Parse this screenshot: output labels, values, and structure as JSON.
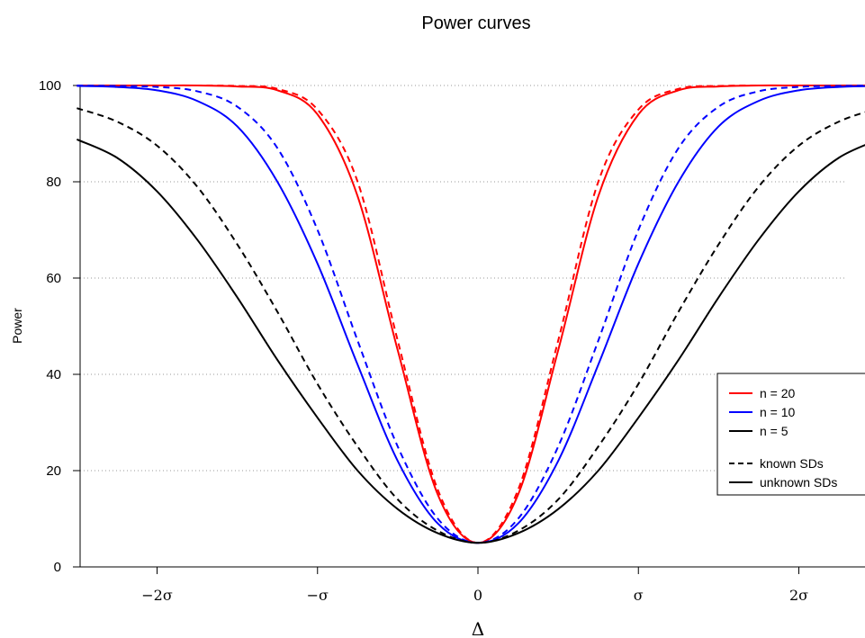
{
  "chart_data": {
    "type": "line",
    "title": "Power curves",
    "xlabel": "Δ",
    "ylabel": "Power",
    "xlim": [
      -2.5,
      2.5
    ],
    "ylim": [
      0,
      100
    ],
    "xticks": [
      {
        "value": -2,
        "label": "−2σ"
      },
      {
        "value": -1,
        "label": "−σ"
      },
      {
        "value": 0,
        "label": "0"
      },
      {
        "value": 1,
        "label": "σ"
      },
      {
        "value": 2,
        "label": "2σ"
      }
    ],
    "yticks": [
      0,
      20,
      40,
      60,
      80,
      100
    ],
    "grid": "horizontal dotted",
    "legend_position": "right",
    "x": [
      0,
      0.25,
      0.5,
      0.75,
      1.0,
      1.25,
      1.5,
      1.75,
      2.0,
      2.25,
      2.5
    ],
    "symmetric_about_zero": true,
    "series": [
      {
        "name": "n = 20",
        "sd": "known SDs",
        "color": "#ff0000",
        "dash": "dashed",
        "values": [
          5,
          16,
          47,
          80,
          95,
          99.3,
          99.9,
          100,
          100,
          100,
          100
        ]
      },
      {
        "name": "n = 20",
        "sd": "unknown SDs",
        "color": "#ff0000",
        "dash": "solid",
        "values": [
          5,
          15,
          45,
          77,
          94,
          99,
          99.8,
          100,
          100,
          100,
          100
        ]
      },
      {
        "name": "n = 10",
        "sd": "known SDs",
        "color": "#0000ff",
        "dash": "dashed",
        "values": [
          5,
          10,
          25,
          47,
          70,
          87,
          95.6,
          98.8,
          99.7,
          99.9,
          100
        ]
      },
      {
        "name": "n = 10",
        "sd": "unknown SDs",
        "color": "#0000ff",
        "dash": "solid",
        "values": [
          5,
          9,
          22,
          42,
          63,
          80,
          91.5,
          96.8,
          99,
          99.7,
          99.9
        ]
      },
      {
        "name": "n = 5",
        "sd": "known SDs",
        "color": "#000000",
        "dash": "dashed",
        "values": [
          5,
          7.5,
          14,
          25,
          38,
          53,
          67,
          79,
          87.5,
          92.5,
          95.3
        ]
      },
      {
        "name": "n = 5",
        "sd": "unknown SDs",
        "color": "#000000",
        "dash": "solid",
        "values": [
          5,
          7,
          12,
          20,
          31,
          43,
          56,
          68,
          78,
          85,
          88.8
        ]
      }
    ],
    "legend": {
      "size_entries": [
        {
          "label": "n = 20",
          "color": "#ff0000"
        },
        {
          "label": "n = 10",
          "color": "#0000ff"
        },
        {
          "label": "n = 5",
          "color": "#000000"
        }
      ],
      "style_entries": [
        {
          "label": "known SDs",
          "dash": "dashed"
        },
        {
          "label": "unknown SDs",
          "dash": "solid"
        }
      ]
    }
  }
}
